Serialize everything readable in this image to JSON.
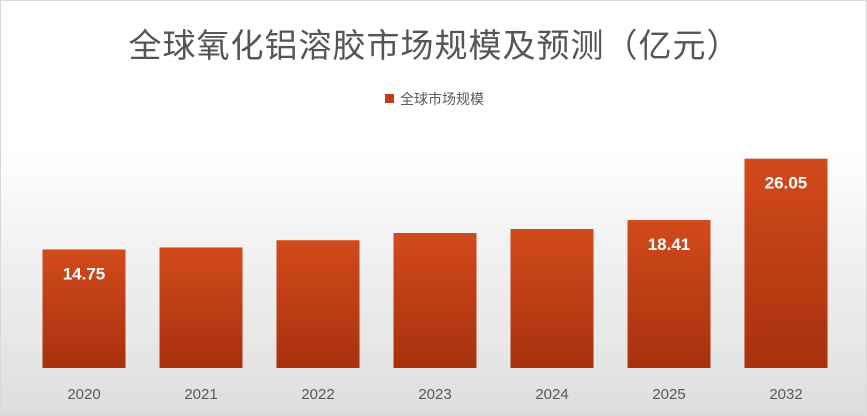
{
  "chart_data": {
    "type": "bar",
    "title": "全球氧化铝溶胶市场规模及预测（亿元）",
    "xlabel": "",
    "ylabel": "",
    "categories": [
      "2020",
      "2021",
      "2022",
      "2023",
      "2024",
      "2025",
      "2032"
    ],
    "series": [
      {
        "name": "全球市场规模",
        "values": [
          14.75,
          15.0,
          15.9,
          16.8,
          17.3,
          18.41,
          26.05
        ],
        "data_labels": [
          "14.75",
          "",
          "",
          "",
          "",
          "18.41",
          "26.05"
        ]
      }
    ],
    "ylim": [
      0,
      28
    ],
    "grid": false,
    "legend_position": "top"
  },
  "colors": {
    "bar_top": "#d24a1c",
    "bar_bottom": "#a8310d",
    "data_label": "#ffffff",
    "axis_label": "#595959"
  }
}
